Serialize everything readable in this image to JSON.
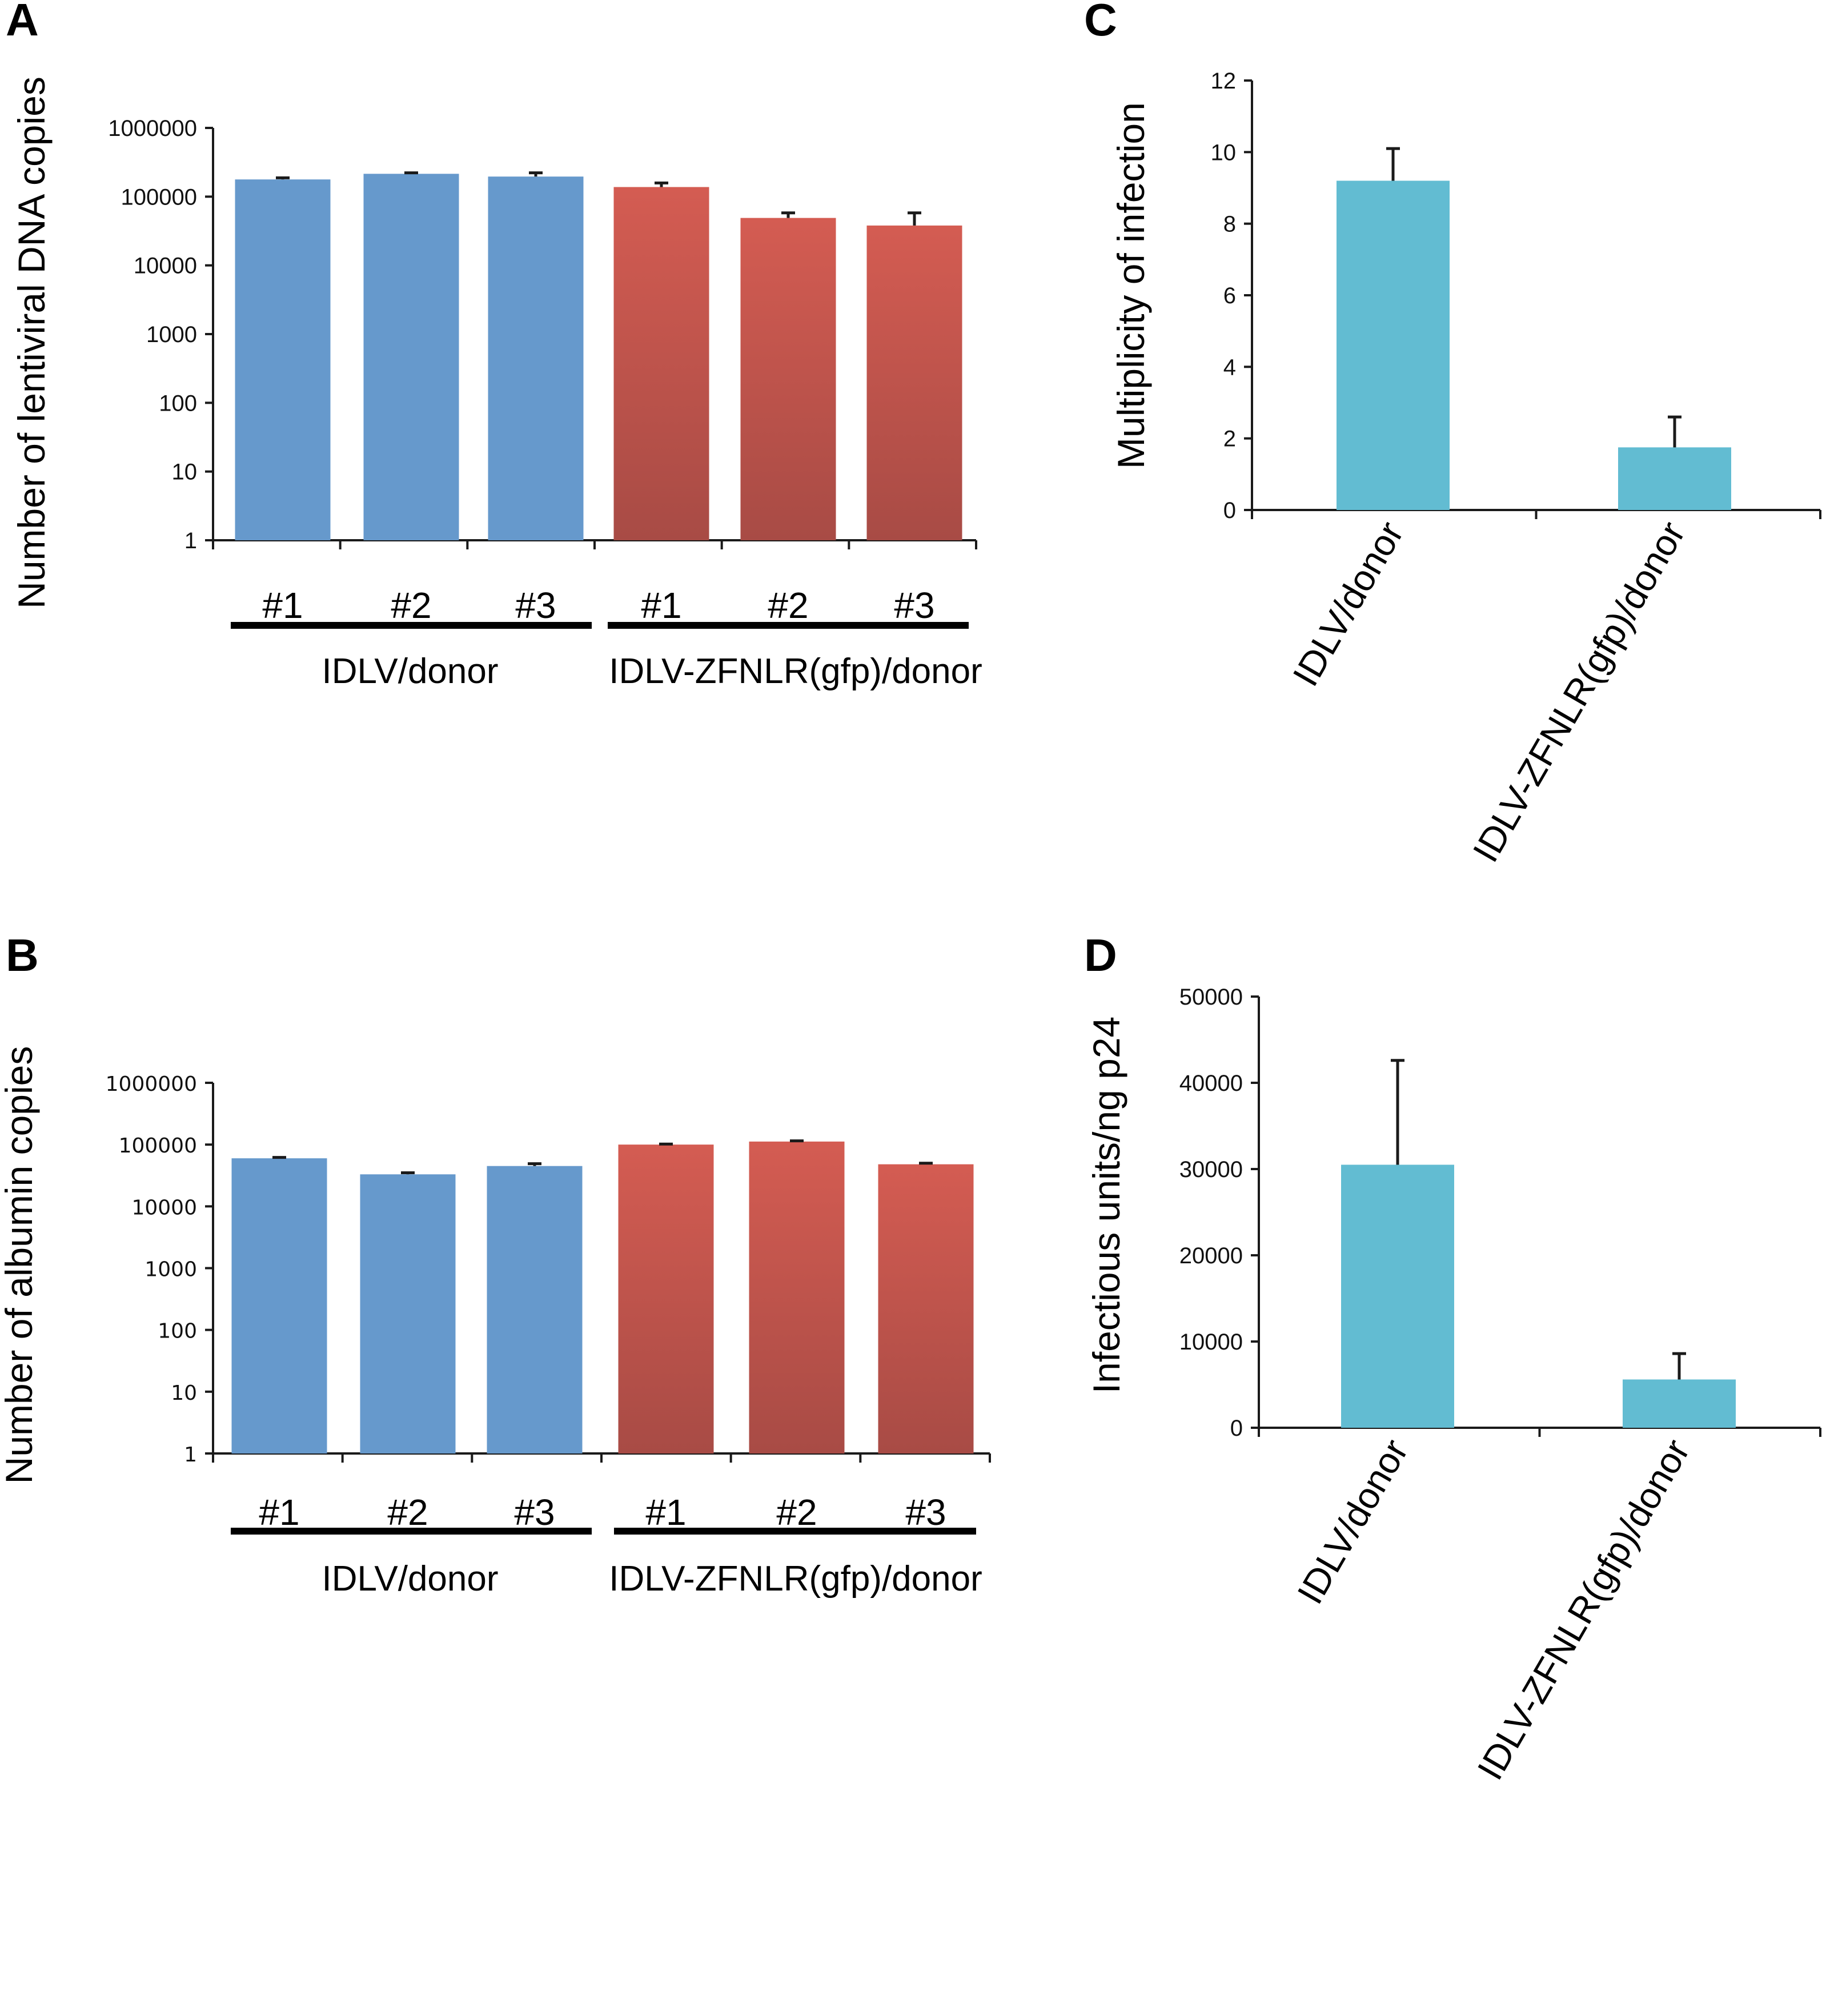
{
  "colors": {
    "blue": "#6699cc",
    "red_top": "#d45c52",
    "red_bottom": "#a84b45",
    "cyan": "#62bcd2",
    "axis": "#1a1a1a"
  },
  "chart_data": [
    {
      "panel": "A",
      "type": "bar",
      "yscale": "log",
      "ylabel": "Number of lentiviral DNA copies",
      "ylim": [
        1,
        1000000
      ],
      "yticks": [
        "1",
        "10",
        "100",
        "1000",
        "10000",
        "100000",
        "1000000"
      ],
      "categories": [
        "#1",
        "#2",
        "#3",
        "#1",
        "#2",
        "#3"
      ],
      "groups": [
        {
          "name": "IDLV/donor",
          "indices": [
            0,
            1,
            2
          ],
          "color": "blue"
        },
        {
          "name": "IDLV-ZFNLR(gfp)/donor",
          "indices": [
            3,
            4,
            5
          ],
          "color": "red"
        }
      ],
      "values": [
        178000,
        215000,
        196000,
        138000,
        49000,
        38000
      ],
      "error_upper": [
        188000,
        222000,
        222000,
        158000,
        58000,
        58000
      ],
      "grid": false
    },
    {
      "panel": "B",
      "type": "bar",
      "yscale": "log",
      "ylabel": "Number of albumin copies",
      "ylim": [
        1,
        1000000
      ],
      "yticks": [
        "1",
        "10",
        "100",
        "1000",
        "10000",
        "100000",
        "1000000"
      ],
      "categories": [
        "#1",
        "#2",
        "#3",
        "#1",
        "#2",
        "#3"
      ],
      "groups": [
        {
          "name": "IDLV/donor",
          "indices": [
            0,
            1,
            2
          ],
          "color": "blue"
        },
        {
          "name": "IDLV-ZFNLR(gfp)/donor",
          "indices": [
            3,
            4,
            5
          ],
          "color": "red"
        }
      ],
      "values": [
        60000,
        33000,
        45000,
        100000,
        112000,
        48000
      ],
      "error_upper": [
        62000,
        35000,
        49000,
        102000,
        115000,
        50000
      ],
      "grid": false
    },
    {
      "panel": "C",
      "type": "bar",
      "yscale": "linear",
      "ylabel": "Multiplicity of infection",
      "ylim": [
        0,
        12
      ],
      "yticks": [
        "0",
        "2",
        "4",
        "6",
        "8",
        "10",
        "12"
      ],
      "categories": [
        "IDLV/donor",
        "IDLV-ZFNLR(gfp)/donor"
      ],
      "values": [
        9.2,
        1.75
      ],
      "error_upper": [
        10.1,
        2.6
      ],
      "color": "cyan",
      "grid": false
    },
    {
      "panel": "D",
      "type": "bar",
      "yscale": "linear",
      "ylabel": "Infectious units/ng p24",
      "ylim": [
        0,
        50000
      ],
      "yticks": [
        "0",
        "10000",
        "20000",
        "30000",
        "40000",
        "50000"
      ],
      "categories": [
        "IDLV/donor",
        "IDLV-ZFNLR(gfp)/donor"
      ],
      "values": [
        30500,
        5600
      ],
      "error_upper": [
        42600,
        8600
      ],
      "color": "cyan",
      "grid": false
    }
  ]
}
